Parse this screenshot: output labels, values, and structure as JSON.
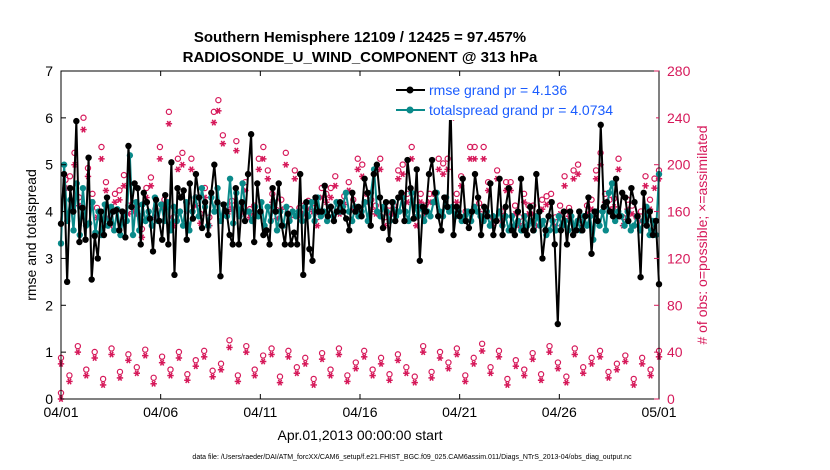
{
  "chart_data": {
    "type": "line",
    "title_line1": "Southern Hemisphere 12109 / 12425 = 97.457%",
    "title_line2": "RADIOSONDE_U_WIND_COMPONENT @ 313 hPa",
    "xlabel": "Apr.01,2013 00:00:00 start",
    "ylabel_left": "rmse and totalspread",
    "ylabel_right": "# of obs: o=possible; ×=assimilated",
    "footnote": "data file: /Users/raeder/DAI/ATM_forcXX/CAM6_setup/f.e21.FHIST_BGC.f09_025.CAM6assim.011/Diags_NTrS_2013-04/obs_diag_output.nc",
    "xlim": [
      0,
      30
    ],
    "ylim_left": [
      0,
      7
    ],
    "ylim_right": [
      0,
      280
    ],
    "x_ticks": [
      0,
      5,
      10,
      15,
      20,
      25,
      30
    ],
    "x_tick_labels": [
      "04/01",
      "04/06",
      "04/11",
      "04/16",
      "04/21",
      "04/26",
      "05/01"
    ],
    "y_ticks_left": [
      "0",
      "1",
      "2",
      "3",
      "4",
      "5",
      "6",
      "7"
    ],
    "y_ticks_right": [
      "0",
      "40",
      "80",
      "120",
      "160",
      "200",
      "240",
      "280"
    ],
    "legend": [
      {
        "name": "rmse grand pr = 4.136",
        "color": "#000000"
      },
      {
        "name": "totalspread grand pr = 4.0734",
        "color": "#0a8a8a"
      }
    ],
    "series": [
      {
        "name": "rmse",
        "axis": "left",
        "color": "#000000",
        "values": [
          3.74,
          4.8,
          2.5,
          4.5,
          4.0,
          5.93,
          3.35,
          4.08,
          3.4,
          5.15,
          2.55,
          3.48,
          3.0,
          4.0,
          3.5,
          4.3,
          3.75,
          4.0,
          4.03,
          3.6,
          4.0,
          3.45,
          5.4,
          4.1,
          4.6,
          4.5,
          3.3,
          4.4,
          4.2,
          3.85,
          3.15,
          4.25,
          3.8,
          3.4,
          4.35,
          3.3,
          5.05,
          2.65,
          4.5,
          4.3,
          4.45,
          3.4,
          4.6,
          3.85,
          4.8,
          4.3,
          3.65,
          4.2,
          3.5,
          4.4,
          5.0,
          4.2,
          2.62,
          4.15,
          4.0,
          3.5,
          3.3,
          4.5,
          3.3,
          4.2,
          3.8,
          4.8,
          5.65,
          3.35,
          4.6,
          4.0,
          3.5,
          3.6,
          3.3,
          4.5,
          4.0,
          4.6,
          3.7,
          3.3,
          3.95,
          3.3,
          3.55,
          3.3,
          4.8,
          2.65,
          4.2,
          3.2,
          2.95,
          4.3,
          4.0,
          4.0,
          4.55,
          3.9,
          4.1,
          3.8,
          4.0,
          4.2,
          4.0,
          3.85,
          3.6,
          4.4,
          4.0,
          4.1,
          3.9,
          4.7,
          4.4,
          3.7,
          4.8,
          5.0,
          4.3,
          3.65,
          4.2,
          3.4,
          4.2,
          3.8,
          4.3,
          4.4,
          3.8,
          5.1,
          4.5,
          3.85,
          4.9,
          2.95,
          4.1,
          4.0,
          4.8,
          5.1,
          4.4,
          3.9,
          3.6,
          4.3,
          4.1,
          6.35,
          3.5,
          4.1,
          3.9,
          4.7,
          3.8,
          3.65,
          4.0,
          4.8,
          4.3,
          3.5,
          4.1,
          3.9,
          4.6,
          3.5,
          3.8,
          4.7,
          3.5,
          4.1,
          4.5,
          3.6,
          3.5,
          4.0,
          4.7,
          3.6,
          3.5,
          4.1,
          3.6,
          4.8,
          4.0,
          3.0,
          3.6,
          3.9,
          4.2,
          3.3,
          1.6,
          3.6,
          4.0,
          3.3,
          4.0,
          3.5,
          3.6,
          4.0,
          3.6,
          3.9,
          4.3,
          3.1,
          4.0,
          3.8,
          5.85,
          4.1,
          4.2,
          4.0,
          3.9,
          4.7,
          3.9,
          4.4,
          4.3,
          3.8,
          4.5,
          4.2,
          3.9,
          2.6,
          4.4,
          3.7,
          4.0,
          3.5,
          3.8,
          2.45
        ]
      },
      {
        "name": "totalspread",
        "axis": "left",
        "color": "#0a8a8a",
        "values": [
          3.32,
          5.0,
          3.8,
          4.25,
          3.6,
          4.6,
          3.5,
          4.5,
          3.7,
          3.75,
          4.2,
          3.55,
          4.0,
          3.5,
          4.15,
          3.7,
          4.1,
          3.6,
          4.05,
          3.5,
          3.95,
          3.8,
          5.2,
          3.5,
          4.2,
          3.6,
          4.15,
          3.8,
          4.0,
          3.7,
          4.3,
          3.8,
          4.15,
          3.8,
          4.2,
          3.6,
          4.1,
          3.8,
          4.0,
          3.7,
          4.2,
          3.6,
          4.0,
          4.3,
          3.9,
          4.5,
          4.1,
          3.7,
          4.3,
          4.0,
          4.5,
          3.8,
          4.15,
          3.9,
          4.7,
          3.75,
          4.4,
          3.9,
          4.6,
          4.0,
          4.0,
          3.8,
          4.1,
          3.9,
          4.2,
          3.7,
          4.1,
          3.8,
          4.2,
          3.6,
          4.0,
          3.7,
          4.1,
          3.8,
          4.0,
          3.9,
          4.0,
          3.8,
          4.1,
          3.9,
          4.2,
          3.8,
          4.3,
          3.9,
          4.0,
          3.8,
          4.1,
          3.9,
          4.2,
          4.0,
          4.1,
          4.4,
          4.0,
          3.8,
          4.1,
          3.9,
          4.0,
          4.2,
          3.8,
          4.4,
          4.9,
          4.0,
          3.9,
          4.1,
          4.0,
          3.8,
          4.2,
          3.9,
          4.0,
          4.3,
          4.0,
          3.8,
          4.4,
          4.1,
          3.9,
          4.1,
          3.8,
          4.0,
          3.9,
          4.2,
          4.4,
          4.0,
          3.9,
          4.3,
          4.0,
          4.1,
          3.9,
          4.0,
          3.8,
          3.9,
          4.0,
          3.8,
          4.1,
          4.0,
          3.9,
          3.8,
          4.0,
          3.7,
          3.9,
          3.8,
          4.0,
          3.7,
          3.9,
          3.6,
          3.9,
          3.7,
          3.8,
          3.6,
          3.9,
          3.7,
          3.8,
          3.6,
          3.9,
          3.7,
          3.8,
          3.5,
          3.6,
          3.8,
          3.6,
          3.9,
          3.7,
          3.8,
          3.6,
          3.9,
          3.7,
          3.8,
          3.6,
          3.9,
          3.7,
          3.9,
          3.4,
          4.0,
          3.7,
          4.0,
          3.6,
          4.4,
          4.6,
          3.8,
          4.0,
          3.9,
          3.7,
          4.0,
          3.6,
          3.7,
          3.9,
          3.6,
          3.8,
          4.1,
          3.5,
          3.8,
          3.5,
          4.8
        ]
      },
      {
        "name": "obs_possible",
        "axis": "right",
        "color": "#d6195a",
        "values": [
          0,
          182,
          185,
          205,
          167,
          235,
          192,
          170,
          158,
          210,
          180,
          150,
          170,
          173,
          186,
          160,
          162,
          160,
          140,
          175,
          184,
          157,
          210,
          165,
          240,
          150,
          200,
          205,
          162,
          200,
          167,
          153,
          175,
          150,
          240,
          250,
          220,
          160,
          164,
          215,
          160,
          180,
          157,
          160,
          200,
          210,
          190,
          170,
          156,
          165,
          205,
          157,
          190,
          158,
          160,
          164,
          162,
          150,
          175,
          170,
          175,
          185,
          160,
          168,
          180,
          165,
          200,
          195,
          170,
          165,
          160,
          200,
          150,
          160,
          160,
          190,
          195,
          170,
          210,
          150,
          170,
          160,
          170,
          170,
          200,
          196,
          200,
          245,
          170,
          185,
          155,
          210,
          210,
          162,
          210,
          180,
          150,
          190,
          155,
          180,
          180,
          160,
          150,
          170,
          160,
          160,
          150,
          165,
          168,
          170,
          150,
          160,
          185,
          158,
          190,
          195,
          150,
          160,
          165,
          190,
          205,
          170,
          165,
          166,
          200,
          150,
          165,
          160,
          150,
          155,
          185,
          165,
          183,
          190
        ]
      },
      {
        "name": "obs_assimilated",
        "axis": "right",
        "color": "#d6195a",
        "values": [
          0,
          180,
          180,
          200,
          165,
          230,
          190,
          168,
          155,
          205,
          178,
          148,
          168,
          170,
          182,
          158,
          160,
          158,
          138,
          172,
          182,
          155,
          205,
          162,
          235,
          148,
          196,
          200,
          160,
          196,
          165,
          150,
          172,
          148,
          236,
          246,
          218,
          158,
          162,
          212,
          158,
          178,
          155,
          158,
          196,
          205,
          188,
          168,
          154,
          162,
          200,
          155,
          188,
          156,
          158,
          162,
          160,
          148,
          172,
          168,
          172,
          182,
          158,
          166,
          178,
          162,
          196,
          190,
          168,
          162,
          158,
          196,
          148,
          158,
          158,
          188,
          192,
          168,
          205,
          148,
          168,
          158,
          168,
          168,
          196,
          192,
          196,
          240,
          168,
          182,
          152,
          205,
          205,
          160,
          205,
          178,
          148,
          188,
          152,
          178,
          178,
          158,
          148,
          168,
          158,
          158,
          148,
          162,
          166,
          168,
          148,
          158,
          182,
          156,
          188,
          192,
          148,
          158,
          162,
          188,
          200,
          168,
          162,
          164,
          196,
          148,
          162,
          158,
          148,
          152,
          182,
          162,
          180,
          188
        ]
      },
      {
        "name": "obs_low_possible",
        "axis": "right",
        "color": "#d6195a",
        "values": [
          30,
          15,
          40,
          20,
          35,
          12,
          38,
          18,
          33,
          22,
          37,
          13,
          31,
          20,
          35,
          16,
          28,
          36,
          19,
          25,
          45,
          15,
          40,
          20,
          32,
          38,
          14,
          36,
          22,
          30,
          12,
          34,
          20,
          38,
          15,
          26,
          36,
          20,
          30,
          16,
          33,
          22,
          14,
          40,
          18,
          35,
          26,
          38,
          15,
          30,
          42,
          22,
          36,
          12,
          28,
          20,
          34,
          16,
          40,
          26,
          14,
          38,
          22,
          30,
          36,
          18,
          25,
          32,
          12,
          30,
          20,
          36
        ]
      },
      {
        "name": "obs_low_assimilated",
        "axis": "right",
        "color": "#d6195a",
        "values": [
          30,
          15,
          40,
          20,
          35,
          12,
          38,
          18,
          33,
          22,
          37,
          13,
          31,
          20,
          35,
          16,
          28,
          36,
          19,
          25,
          44,
          15,
          40,
          20,
          32,
          38,
          14,
          36,
          22,
          30,
          12,
          34,
          20,
          38,
          15,
          26,
          36,
          20,
          30,
          16,
          33,
          22,
          14,
          40,
          18,
          35,
          26,
          38,
          15,
          30,
          41,
          22,
          36,
          12,
          28,
          20,
          34,
          16,
          40,
          26,
          14,
          38,
          22,
          30,
          36,
          18,
          25,
          32,
          12,
          30,
          20,
          36
        ]
      }
    ]
  }
}
